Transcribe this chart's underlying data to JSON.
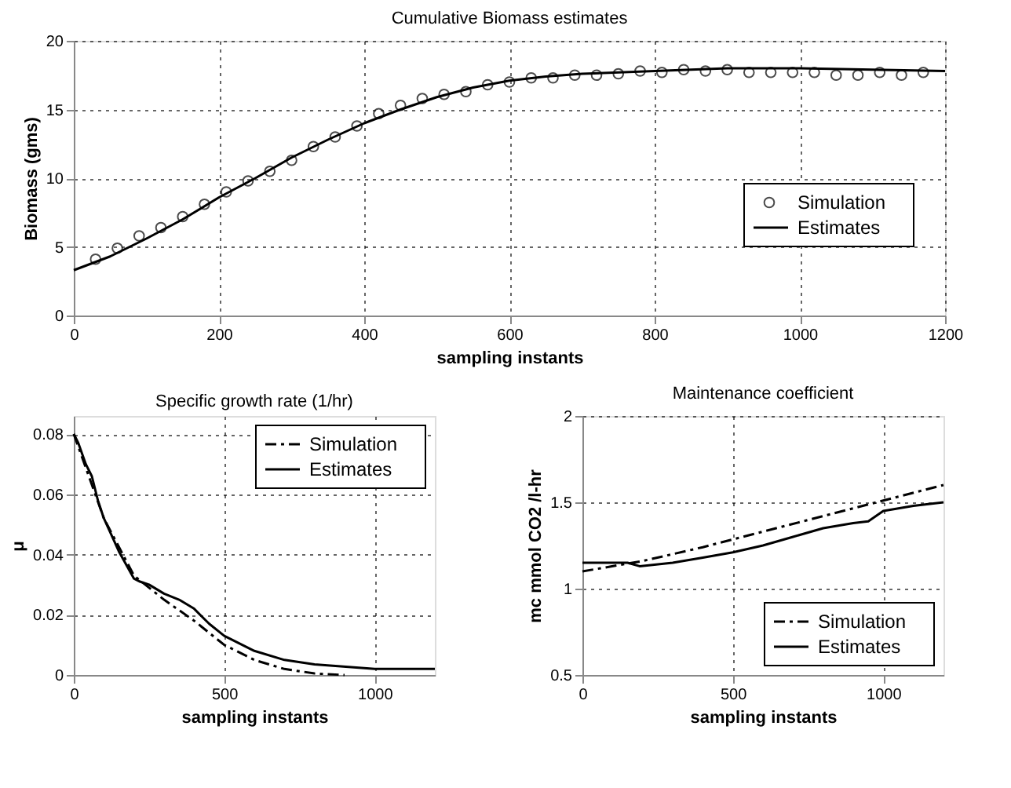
{
  "chart_data": [
    {
      "type": "line",
      "title": "Cumulative Biomass estimates",
      "xlabel": "sampling instants",
      "ylabel": "Biomass (gms)",
      "xlim": [
        0,
        1200
      ],
      "xticks": [
        0,
        200,
        400,
        600,
        800,
        1000,
        1200
      ],
      "ylim": [
        0,
        20
      ],
      "yticks": [
        0,
        5,
        10,
        15,
        20
      ],
      "grid": true,
      "legend": "right",
      "series": [
        {
          "name": "Simulation",
          "type": "scatter",
          "marker": "circle",
          "color": "#000000",
          "x": [
            30,
            60,
            90,
            120,
            150,
            180,
            210,
            240,
            270,
            300,
            330,
            360,
            390,
            420,
            450,
            480,
            510,
            540,
            570,
            600,
            630,
            660,
            690,
            720,
            750,
            780,
            810,
            840,
            870,
            900,
            930,
            960,
            990,
            1020,
            1050,
            1080,
            1110,
            1140,
            1170
          ],
          "values": [
            4.1,
            4.9,
            5.8,
            6.4,
            7.2,
            8.1,
            9.0,
            9.8,
            10.5,
            11.3,
            12.3,
            13.0,
            13.8,
            14.7,
            15.3,
            15.8,
            16.1,
            16.3,
            16.8,
            17.0,
            17.3,
            17.3,
            17.5,
            17.5,
            17.6,
            17.8,
            17.7,
            17.9,
            17.8,
            17.9,
            17.7,
            17.7,
            17.7,
            17.7,
            17.5,
            17.5,
            17.7,
            17.5,
            17.7
          ]
        },
        {
          "name": "Estimates",
          "line_style": "solid",
          "color": "#000000",
          "x": [
            0,
            50,
            100,
            150,
            200,
            250,
            300,
            350,
            400,
            450,
            500,
            550,
            600,
            650,
            700,
            800,
            900,
            1000,
            1100,
            1200
          ],
          "values": [
            3.3,
            4.3,
            5.6,
            7.0,
            8.6,
            10.0,
            11.5,
            12.8,
            14.0,
            15.0,
            15.9,
            16.6,
            17.1,
            17.4,
            17.6,
            17.8,
            18.0,
            18.0,
            17.9,
            17.8
          ]
        }
      ]
    },
    {
      "type": "line",
      "title": "Specific growth rate (1/hr)",
      "xlabel": "sampling instants",
      "ylabel": "μ",
      "xlim": [
        0,
        1200
      ],
      "xticks": [
        0,
        500,
        1000
      ],
      "ylim": [
        0,
        0.086
      ],
      "yticks": [
        0,
        0.02,
        0.04,
        0.06,
        0.08
      ],
      "grid": true,
      "legend": "top right",
      "series": [
        {
          "name": "Simulation",
          "line_style": "dashdot",
          "color": "#000000",
          "x": [
            0,
            100,
            200,
            300,
            400,
            500,
            600,
            700,
            800,
            900
          ],
          "values": [
            0.08,
            0.052,
            0.033,
            0.025,
            0.018,
            0.01,
            0.005,
            0.002,
            0.0005,
            0
          ]
        },
        {
          "name": "Estimates",
          "line_style": "solid",
          "color": "#000000",
          "x": [
            0,
            15,
            40,
            60,
            80,
            100,
            150,
            200,
            220,
            250,
            300,
            350,
            400,
            450,
            500,
            600,
            700,
            800,
            1000,
            1200
          ],
          "values": [
            0.08,
            0.077,
            0.07,
            0.066,
            0.058,
            0.052,
            0.041,
            0.032,
            0.031,
            0.03,
            0.027,
            0.025,
            0.022,
            0.017,
            0.013,
            0.008,
            0.005,
            0.0035,
            0.002,
            0.002
          ]
        }
      ]
    },
    {
      "type": "line",
      "title": "Maintenance coefficient",
      "xlabel": "sampling instants",
      "ylabel": "mc mmol CO2 /l-hr",
      "xlim": [
        0,
        1200
      ],
      "xticks": [
        0,
        500,
        1000
      ],
      "ylim": [
        0.5,
        2
      ],
      "yticks": [
        0.5,
        1,
        1.5,
        2
      ],
      "grid": true,
      "legend": "bottom right",
      "series": [
        {
          "name": "Simulation",
          "line_style": "dashdot",
          "color": "#000000",
          "x": [
            0,
            200,
            400,
            600,
            800,
            1000,
            1200
          ],
          "values": [
            1.1,
            1.16,
            1.24,
            1.33,
            1.42,
            1.51,
            1.6
          ]
        },
        {
          "name": "Estimates",
          "line_style": "solid",
          "color": "#000000",
          "x": [
            0,
            150,
            190,
            300,
            400,
            500,
            600,
            700,
            800,
            900,
            950,
            1000,
            1100,
            1200
          ],
          "values": [
            1.15,
            1.15,
            1.13,
            1.15,
            1.18,
            1.21,
            1.25,
            1.3,
            1.35,
            1.38,
            1.39,
            1.45,
            1.48,
            1.5
          ]
        }
      ]
    }
  ]
}
